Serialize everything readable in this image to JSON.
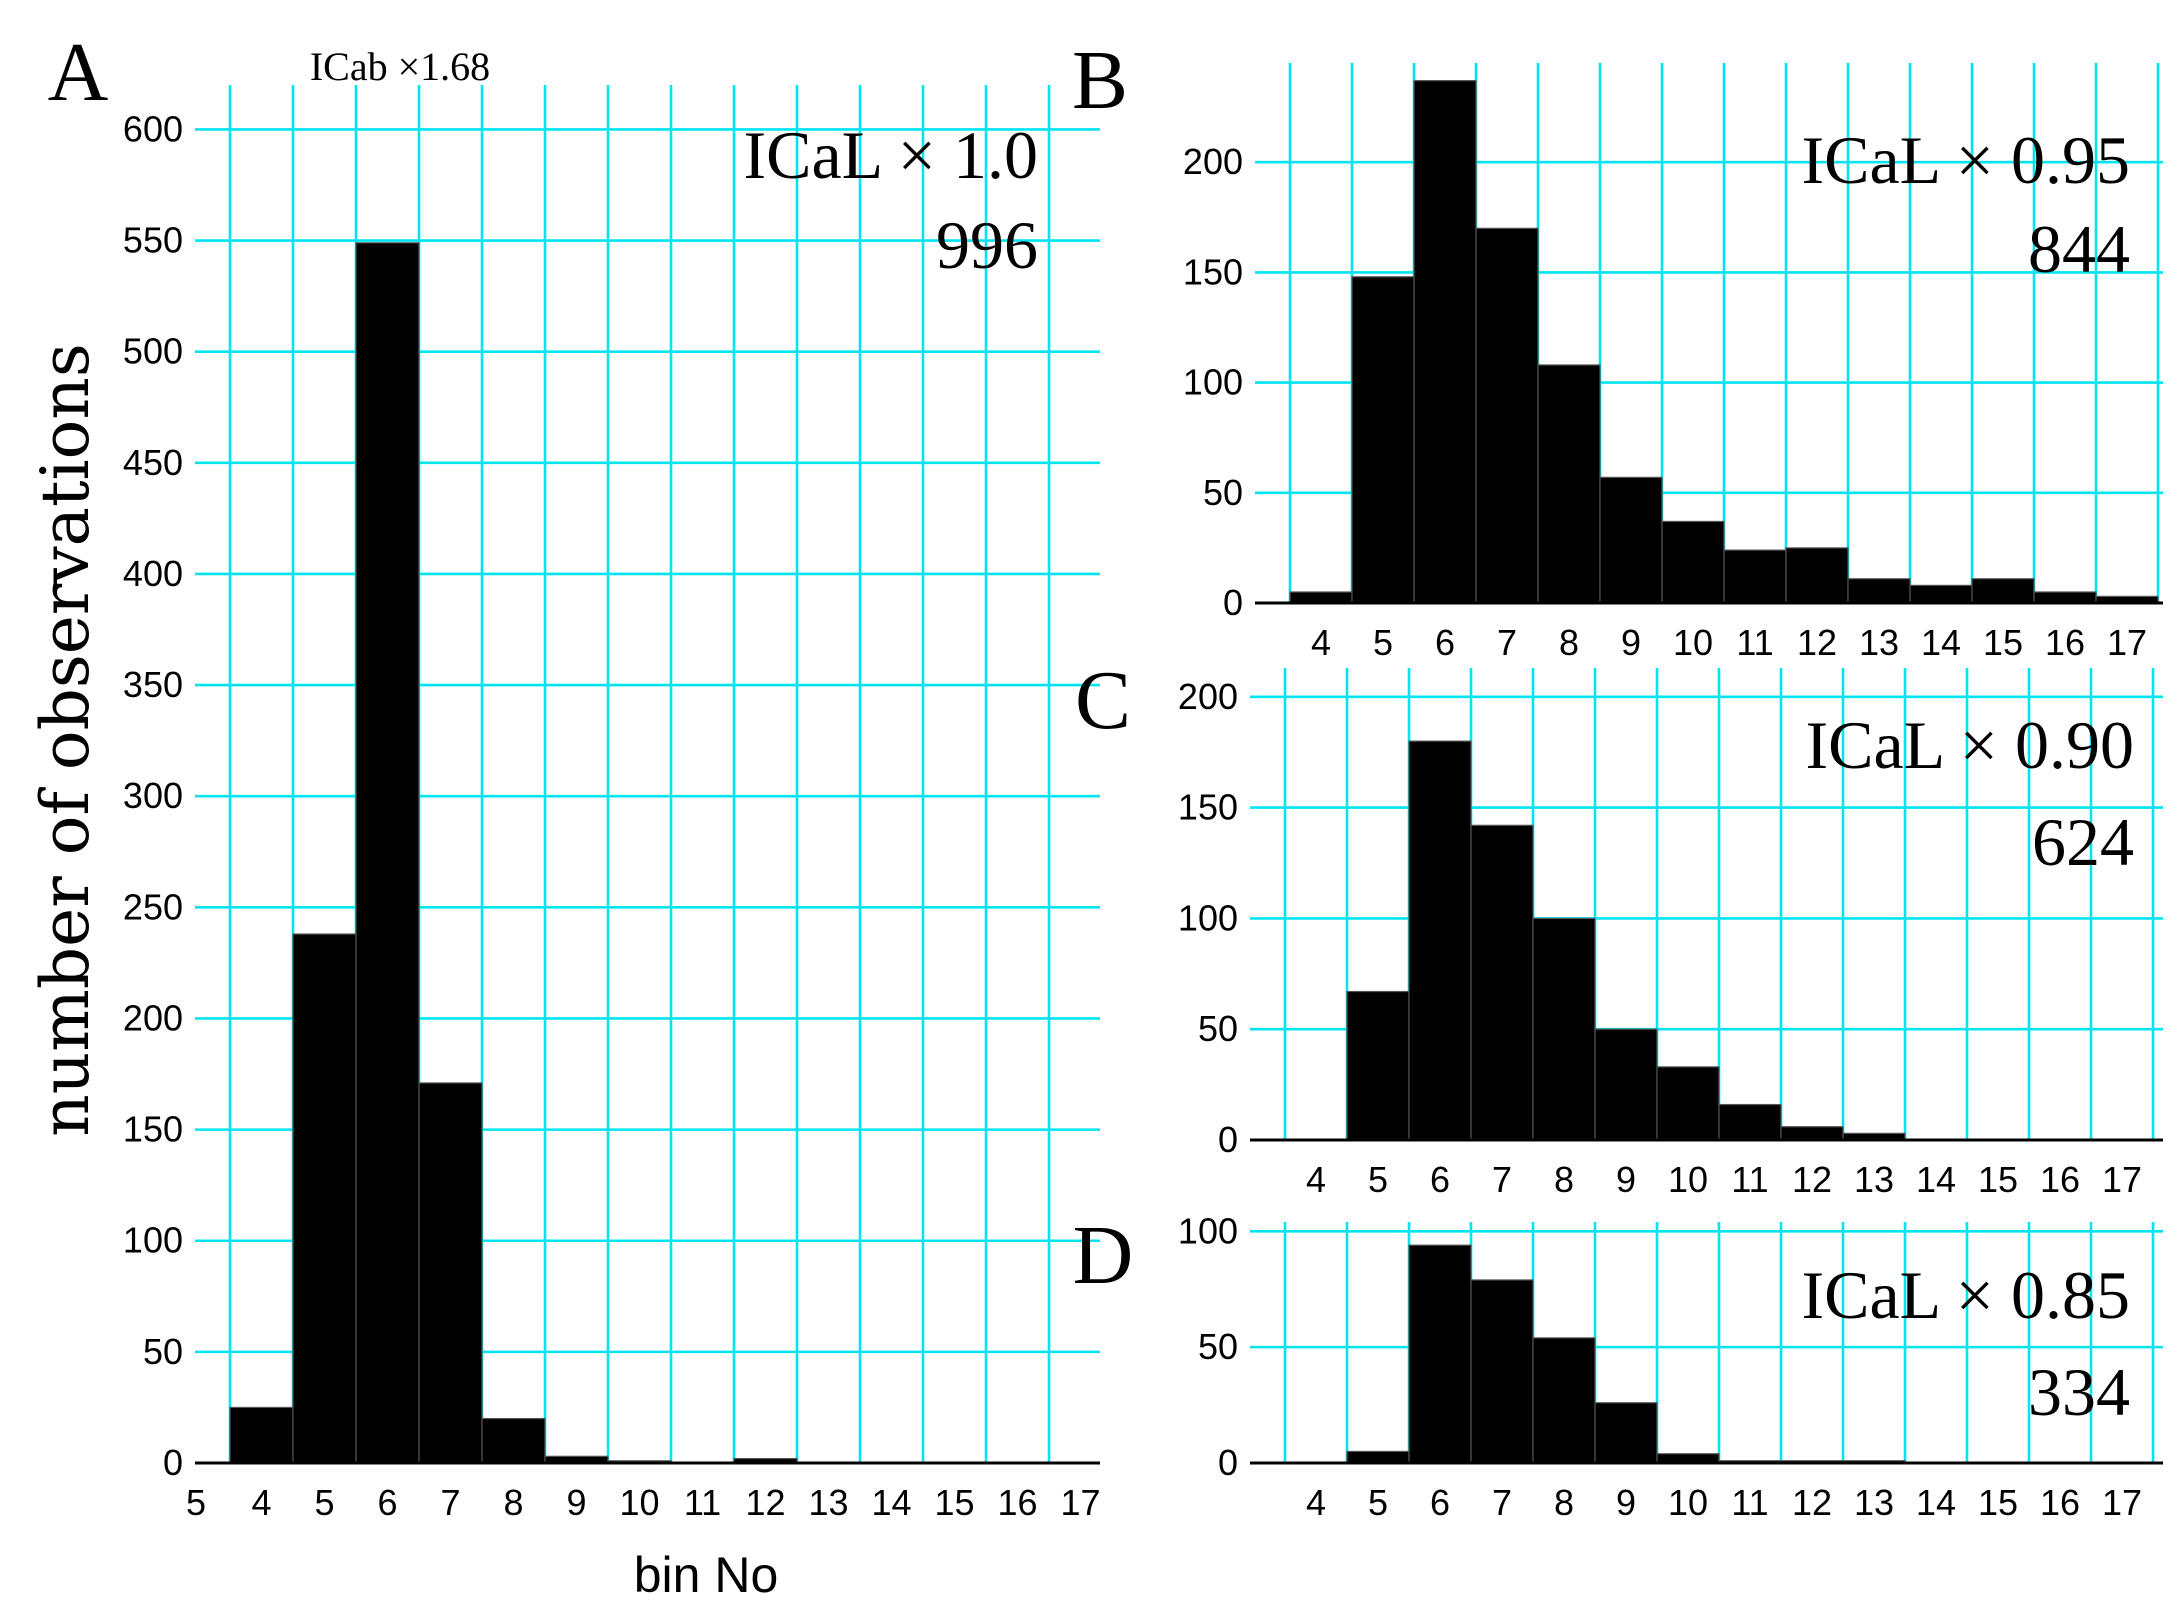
{
  "figure": {
    "ylabel": "number of observations",
    "xlabel": "bin No"
  },
  "chart_data": [
    {
      "type": "bar",
      "panel": "A",
      "categories": [
        "4",
        "5",
        "6",
        "7",
        "8",
        "9",
        "10",
        "11",
        "12",
        "13",
        "14",
        "15",
        "16",
        "17"
      ],
      "values": [
        25,
        238,
        549,
        171,
        20,
        3,
        1,
        0,
        2,
        0,
        0,
        0,
        0,
        0
      ],
      "ylim": [
        0,
        620
      ],
      "yticks": [
        0,
        50,
        100,
        150,
        200,
        250,
        300,
        350,
        400,
        450,
        500,
        550,
        600
      ],
      "extra_tick_label": "5",
      "annotation_top": "ICab ×1.68",
      "annotation_label": "ICaL × 1.0",
      "annotation_count": "996",
      "grid": true
    },
    {
      "type": "bar",
      "panel": "B",
      "categories": [
        "4",
        "5",
        "6",
        "7",
        "8",
        "9",
        "10",
        "11",
        "12",
        "13",
        "14",
        "15",
        "16",
        "17"
      ],
      "values": [
        5,
        148,
        237,
        170,
        108,
        57,
        37,
        24,
        25,
        11,
        8,
        11,
        5,
        3
      ],
      "ylim": [
        0,
        245
      ],
      "yticks": [
        0,
        50,
        100,
        150,
        200
      ],
      "annotation_label": "ICaL × 0.95",
      "annotation_count": "844",
      "grid": true
    },
    {
      "type": "bar",
      "panel": "C",
      "categories": [
        "4",
        "5",
        "6",
        "7",
        "8",
        "9",
        "10",
        "11",
        "12",
        "13",
        "14",
        "15",
        "16",
        "17"
      ],
      "values": [
        0,
        67,
        180,
        142,
        100,
        50,
        33,
        16,
        6,
        3,
        0,
        0,
        0,
        0
      ],
      "ylim": [
        0,
        213
      ],
      "yticks": [
        0,
        50,
        100,
        150,
        200
      ],
      "annotation_label": "ICaL × 0.90",
      "annotation_count": "624",
      "grid": true
    },
    {
      "type": "bar",
      "panel": "D",
      "categories": [
        "4",
        "5",
        "6",
        "7",
        "8",
        "9",
        "10",
        "11",
        "12",
        "13",
        "14",
        "15",
        "16",
        "17"
      ],
      "values": [
        0,
        5,
        94,
        79,
        54,
        26,
        4,
        1,
        1,
        1,
        0,
        0,
        0,
        0
      ],
      "ylim": [
        0,
        104
      ],
      "yticks": [
        0,
        50,
        100
      ],
      "annotation_label": "ICaL × 0.85",
      "annotation_count": "334",
      "grid": true
    }
  ]
}
